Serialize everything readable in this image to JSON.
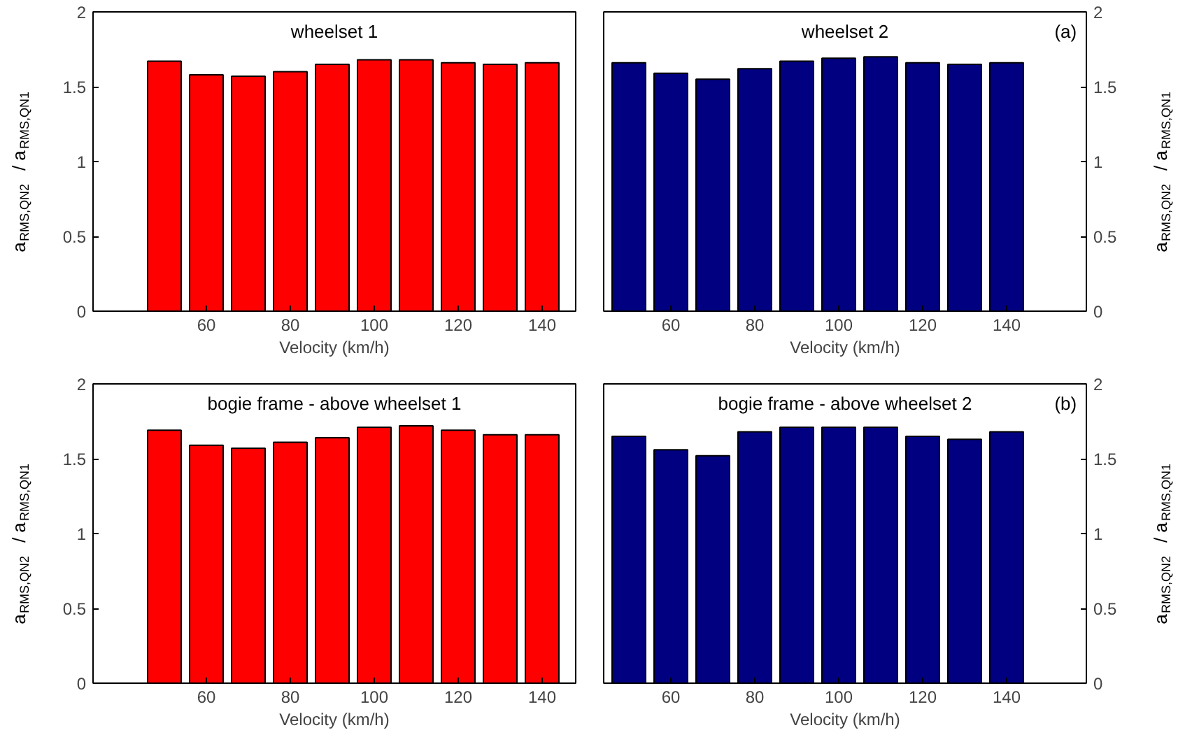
{
  "chart_data": [
    {
      "type": "bar",
      "title": "wheelset 1",
      "xlabel": "Velocity (km/h)",
      "ylabel": "a$_{RMS,QN2}$ / a$_{RMS,QN1}$",
      "x": [
        50,
        60,
        70,
        80,
        90,
        100,
        110,
        120,
        130,
        140
      ],
      "values": [
        1.67,
        1.58,
        1.57,
        1.6,
        1.65,
        1.68,
        1.68,
        1.66,
        1.65,
        1.66
      ],
      "color": "#ff0000",
      "xlim": [
        33,
        148
      ],
      "xticks": [
        60,
        80,
        100,
        120,
        140
      ],
      "ylim": [
        0,
        2
      ],
      "yticks": [
        0,
        0.5,
        1,
        1.5,
        2
      ],
      "grid": false
    },
    {
      "type": "bar",
      "title": "wheelset 2",
      "xlabel": "Velocity (km/h)",
      "ylabel": "a$_{RMS,QN2}$ / a$_{RMS,QN1}$",
      "annotations": [
        "(a)"
      ],
      "x": [
        50,
        60,
        70,
        80,
        90,
        100,
        110,
        120,
        130,
        140
      ],
      "values": [
        1.66,
        1.59,
        1.55,
        1.62,
        1.67,
        1.69,
        1.7,
        1.66,
        1.65,
        1.66
      ],
      "color": "#000080",
      "xlim": [
        44,
        159
      ],
      "xticks": [
        60,
        80,
        100,
        120,
        140
      ],
      "ylim": [
        0,
        2
      ],
      "yticks": [
        0,
        0.5,
        1,
        1.5,
        2
      ],
      "grid": false
    },
    {
      "type": "bar",
      "title": "bogie frame - above wheelset 1",
      "xlabel": "Velocity (km/h)",
      "ylabel": "a$_{RMS,QN2}$ / a$_{RMS,QN1}$",
      "x": [
        50,
        60,
        70,
        80,
        90,
        100,
        110,
        120,
        130,
        140
      ],
      "values": [
        1.69,
        1.59,
        1.57,
        1.61,
        1.64,
        1.71,
        1.72,
        1.69,
        1.66,
        1.66
      ],
      "color": "#ff0000",
      "xlim": [
        33,
        148
      ],
      "xticks": [
        60,
        80,
        100,
        120,
        140
      ],
      "ylim": [
        0,
        2
      ],
      "yticks": [
        0,
        0.5,
        1,
        1.5,
        2
      ],
      "grid": false
    },
    {
      "type": "bar",
      "title": "bogie frame - above wheelset 2",
      "xlabel": "Velocity (km/h)",
      "ylabel": "a$_{RMS,QN2}$ / a$_{RMS,QN1}$",
      "annotations": [
        "(b)"
      ],
      "x": [
        50,
        60,
        70,
        80,
        90,
        100,
        110,
        120,
        130,
        140
      ],
      "values": [
        1.65,
        1.56,
        1.52,
        1.68,
        1.71,
        1.71,
        1.71,
        1.65,
        1.63,
        1.68
      ],
      "color": "#000080",
      "xlim": [
        44,
        159
      ],
      "xticks": [
        60,
        80,
        100,
        120,
        140
      ],
      "ylim": [
        0,
        2
      ],
      "yticks": [
        0,
        0.5,
        1,
        1.5,
        2
      ],
      "grid": false
    }
  ]
}
